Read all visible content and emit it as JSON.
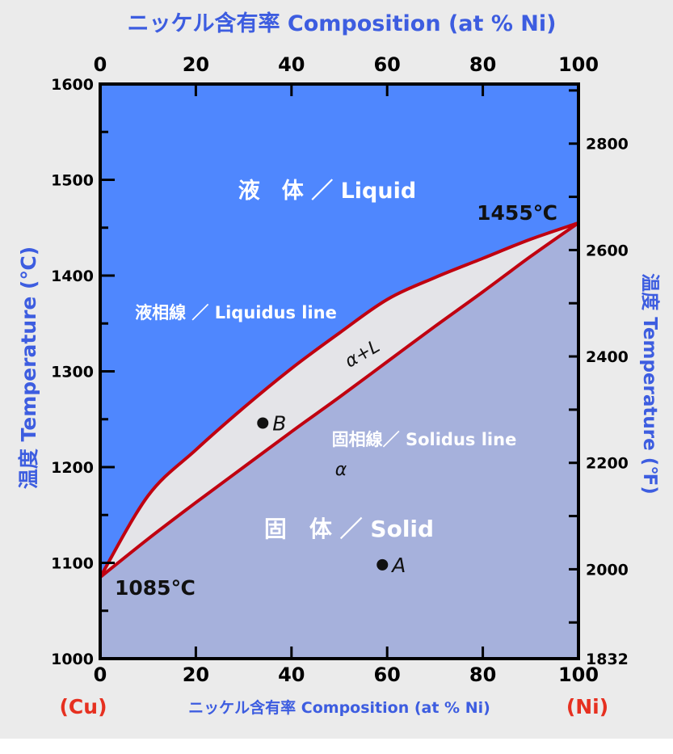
{
  "chart_data": {
    "type": "phase-diagram",
    "top_title": "ニッケル含有率  Composition (at % Ni)",
    "bottom_title": "ニッケル含有率  Composition (at % Ni)",
    "left_ylabel": "温度  Temperature (℃)",
    "right_ylabel": "温度  Temperature (℉)",
    "x_ticks": [
      0,
      20,
      40,
      60,
      80,
      100
    ],
    "x_range": [
      0,
      100
    ],
    "y_range": [
      1000,
      1600
    ],
    "y_ticks": [
      1000,
      1100,
      1200,
      1300,
      1400,
      1500,
      1600
    ],
    "right_ticks": [
      1832,
      2000,
      2200,
      2400,
      2600,
      2800
    ],
    "endpoints": {
      "left_label": "(Cu)",
      "right_label": "(Ni)",
      "left_melting": "1085℃",
      "right_melting": "1455℃"
    },
    "liquidus": [
      [
        0,
        1085
      ],
      [
        10,
        1170
      ],
      [
        20,
        1218
      ],
      [
        30,
        1262
      ],
      [
        40,
        1303
      ],
      [
        50,
        1340
      ],
      [
        60,
        1375
      ],
      [
        70,
        1398
      ],
      [
        80,
        1418
      ],
      [
        90,
        1438
      ],
      [
        100,
        1455
      ]
    ],
    "solidus": [
      [
        0,
        1085
      ],
      [
        10,
        1125
      ],
      [
        20,
        1163
      ],
      [
        30,
        1200
      ],
      [
        40,
        1237
      ],
      [
        50,
        1273
      ],
      [
        60,
        1310
      ],
      [
        70,
        1347
      ],
      [
        80,
        1383
      ],
      [
        90,
        1420
      ],
      [
        100,
        1455
      ]
    ],
    "regions": {
      "liquid": "液　体 ／ Liquid",
      "liquidus": "液相線 ／ Liquidus line",
      "two_phase": "α+L",
      "solidus": "固相線／ Solidus line",
      "alpha": "α",
      "solid": "固　体 ／ Solid"
    },
    "points": [
      {
        "label": "B",
        "x": 34,
        "y": 1246
      },
      {
        "label": "A",
        "x": 59,
        "y": 1098
      }
    ],
    "colors": {
      "liquid": "#4f87fe",
      "solid": "#a6b1dc",
      "two_phase": "#e4e4e8",
      "line": "#c00010",
      "axis_label": "#3d5de0",
      "endpoint_label": "#e63020"
    }
  }
}
